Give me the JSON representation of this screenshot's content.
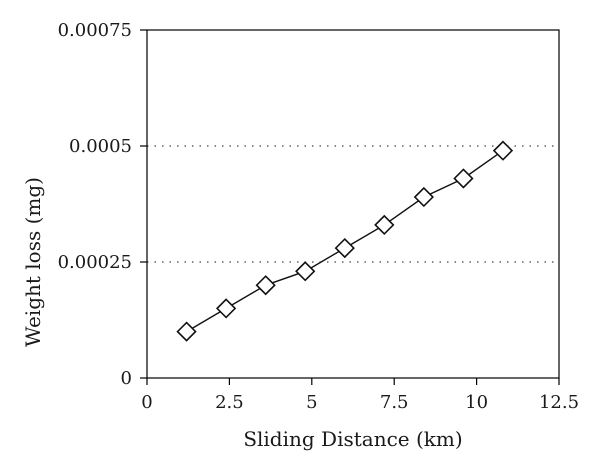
{
  "chart_data": {
    "type": "line",
    "title": "",
    "xlabel": "Sliding Distance (km)",
    "ylabel": "Weight loss (mg)",
    "xlim": [
      0,
      12.5
    ],
    "ylim": [
      0,
      0.00075
    ],
    "x_ticks": [
      "0",
      "2.5",
      "5",
      "7.5",
      "10",
      "12.5"
    ],
    "y_ticks": [
      "0",
      "0.00025",
      "0.0005",
      "0.00075"
    ],
    "grid": "horizontal dotted at 0.00025 and 0.0005",
    "marker": "diamond",
    "series": [
      {
        "x": [
          1.2,
          2.4,
          3.6,
          4.8,
          6.0,
          7.2,
          8.4,
          9.6,
          10.8
        ],
        "values": [
          0.0001,
          0.00015,
          0.0002,
          0.00023,
          0.00028,
          0.00033,
          0.00039,
          0.00043,
          0.00049
        ]
      }
    ]
  }
}
